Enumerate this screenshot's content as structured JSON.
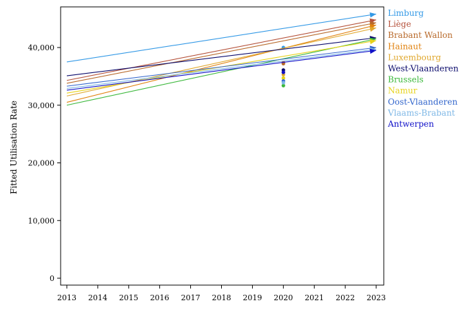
{
  "chart_data": {
    "type": "line",
    "title": "",
    "xlabel": "",
    "ylabel": "Fitted Utilisation Rate",
    "xlim": [
      2013,
      2023
    ],
    "ylim": [
      0,
      48500
    ],
    "x_ticks": [
      2013,
      2014,
      2015,
      2016,
      2017,
      2018,
      2019,
      2020,
      2021,
      2022,
      2023
    ],
    "x_tick_labels": [
      "2013",
      "2014",
      "2015",
      "2016",
      "2017",
      "2018",
      "2019",
      "2020",
      "2021",
      "2022",
      "2023"
    ],
    "y_ticks": [
      0,
      10000,
      20000,
      30000,
      40000
    ],
    "y_tick_labels": [
      "0",
      "10,000",
      "20,000",
      "30,000",
      "40,000"
    ],
    "grid": false,
    "legend_position": "right",
    "series": [
      {
        "name": "Limburg",
        "color": "#3399e6",
        "line": {
          "x": [
            2013,
            2023
          ],
          "y": [
            37500,
            45800
          ]
        },
        "point": {
          "x": 2020,
          "y": 40000
        }
      },
      {
        "name": "Liège",
        "color": "#b5523b",
        "line": {
          "x": [
            2013,
            2023
          ],
          "y": [
            34300,
            44800
          ]
        },
        "point": {
          "x": 2020,
          "y": 37400
        }
      },
      {
        "name": "Brabant Wallon",
        "color": "#b86a2b",
        "line": {
          "x": [
            2013,
            2023
          ],
          "y": [
            33800,
            44300
          ]
        },
        "point": {
          "x": 2020,
          "y": 37200
        }
      },
      {
        "name": "Hainaut",
        "color": "#e0820f",
        "line": {
          "x": [
            2013,
            2023
          ],
          "y": [
            30500,
            43900
          ]
        },
        "point": {
          "x": 2020,
          "y": 35700
        }
      },
      {
        "name": "Luxembourg",
        "color": "#e0a82e",
        "line": {
          "x": [
            2013,
            2023
          ],
          "y": [
            31600,
            43400
          ]
        },
        "point": {
          "x": 2020,
          "y": 35300
        }
      },
      {
        "name": "West-Vlaanderen",
        "color": "#0a0a6b",
        "line": {
          "x": [
            2013,
            2023
          ],
          "y": [
            35100,
            41700
          ]
        },
        "point": {
          "x": 2020,
          "y": 36100
        }
      },
      {
        "name": "Brussels",
        "color": "#3cb83c",
        "line": {
          "x": [
            2013,
            2023
          ],
          "y": [
            30000,
            41500
          ]
        },
        "point": {
          "x": 2020,
          "y": 33400
        }
      },
      {
        "name": "Namur",
        "color": "#e6d21a",
        "line": {
          "x": [
            2013,
            2023
          ],
          "y": [
            32100,
            41200
          ]
        },
        "point": {
          "x": 2020,
          "y": 34700
        }
      },
      {
        "name": "Oost-Vlaanderen",
        "color": "#3366cc",
        "line": {
          "x": [
            2013,
            2023
          ],
          "y": [
            33300,
            40000
          ]
        },
        "point": {
          "x": 2020,
          "y": 34200
        }
      },
      {
        "name": "Vlaams-Brabant",
        "color": "#7fb8e6",
        "line": {
          "x": [
            2013,
            2023
          ],
          "y": [
            32900,
            39700
          ]
        },
        "point": {
          "x": 2020,
          "y": 33900
        }
      },
      {
        "name": "Antwerpen",
        "color": "#1010c8",
        "line": {
          "x": [
            2013,
            2023
          ],
          "y": [
            32600,
            39500
          ]
        },
        "point": {
          "x": 2020,
          "y": 35700
        }
      }
    ]
  }
}
